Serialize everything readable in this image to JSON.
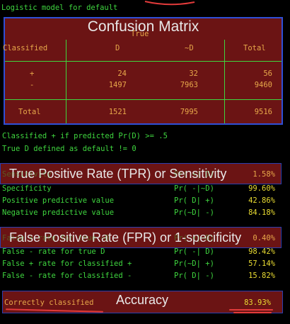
{
  "header": {
    "title": "Logistic model for default"
  },
  "confusion_matrix": {
    "overlay_label": "Confusion Matrix",
    "true_label": "True",
    "col_headers": [
      "Classified",
      "D",
      "~D",
      "Total"
    ],
    "rows": [
      {
        "label": "+",
        "d": "24",
        "nd": "32",
        "total": "56"
      },
      {
        "label": "-",
        "d": "1497",
        "nd": "7963",
        "total": "9460"
      }
    ],
    "total_row": {
      "label": "Total",
      "d": "1521",
      "nd": "7995",
      "total": "9516"
    }
  },
  "notes": {
    "line1": "Classified + if predicted Pr(D) >= .5",
    "line2": "True D defined as default != 0"
  },
  "sens_block": {
    "overlay_label": "True Positive Rate (TPR) or Sensitivity",
    "rows": [
      {
        "label": "Sensitivity",
        "expr": "Pr( +| D)",
        "value": "1.58%"
      },
      {
        "label": "Specificity",
        "expr": "Pr( -|~D)",
        "value": "99.60%"
      },
      {
        "label": "Positive predictive value",
        "expr": "Pr( D| +)",
        "value": "42.86%"
      },
      {
        "label": "Negative predictive value",
        "expr": "Pr(~D| -)",
        "value": "84.18%"
      }
    ]
  },
  "fpr_block": {
    "overlay_label": "False Positive Rate (FPR) or 1-specificity",
    "rows": [
      {
        "label": "False + rate for true ~D",
        "expr": "Pr( +|~D)",
        "value": "0.40%"
      },
      {
        "label": "False - rate for true D",
        "expr": "Pr( -| D)",
        "value": "98.42%"
      },
      {
        "label": "False + rate for classified +",
        "expr": "Pr(~D| +)",
        "value": "57.14%"
      },
      {
        "label": "False - rate for classified -",
        "expr": "Pr( D| -)",
        "value": "15.82%"
      }
    ]
  },
  "accuracy": {
    "overlay_label": "Accuracy",
    "label": "Correctly classified",
    "value": "83.93%"
  },
  "colors": {
    "text_green": "#3fd63f",
    "text_yellow": "#e9dc32",
    "text_orange": "#e7a84a",
    "box_fill": "#6b1414",
    "box_border": "#2f4fd6",
    "underline": "#e23b3b"
  }
}
